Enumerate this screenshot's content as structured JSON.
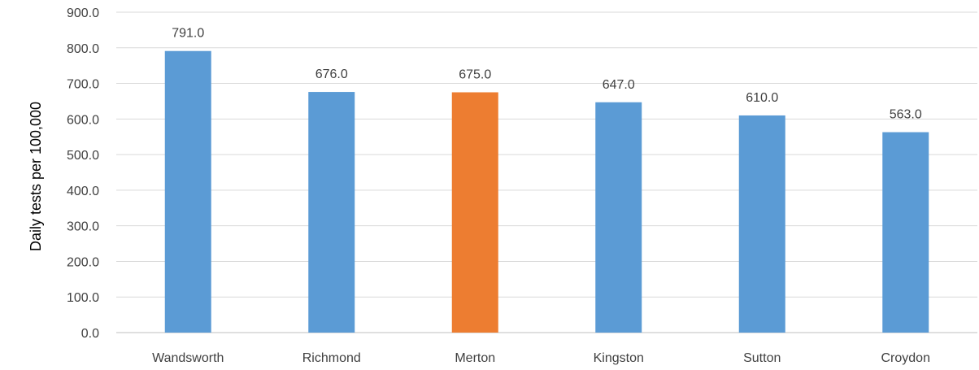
{
  "chart_data": {
    "type": "bar",
    "title": "",
    "ylabel": "Daily tests per 100,000",
    "xlabel": "",
    "categories": [
      "Wandsworth",
      "Richmond",
      "Merton",
      "Kingston",
      "Sutton",
      "Croydon"
    ],
    "values": [
      791.0,
      676.0,
      675.0,
      647.0,
      610.0,
      563.0
    ],
    "data_labels": [
      "791.0",
      "676.0",
      "675.0",
      "647.0",
      "610.0",
      "563.0"
    ],
    "ylim": [
      0,
      900
    ],
    "yticks": [
      0,
      100,
      200,
      300,
      400,
      500,
      600,
      700,
      800,
      900
    ],
    "ytick_labels": [
      "0.0",
      "100.0",
      "200.0",
      "300.0",
      "400.0",
      "500.0",
      "600.0",
      "700.0",
      "800.0",
      "900.0"
    ],
    "grid": true,
    "colors": {
      "default": "#5B9BD5",
      "highlight": "#ED7D31",
      "gridline": "#D9D9D9",
      "axis": "#BFBFBF"
    },
    "highlight_category": "Merton"
  }
}
